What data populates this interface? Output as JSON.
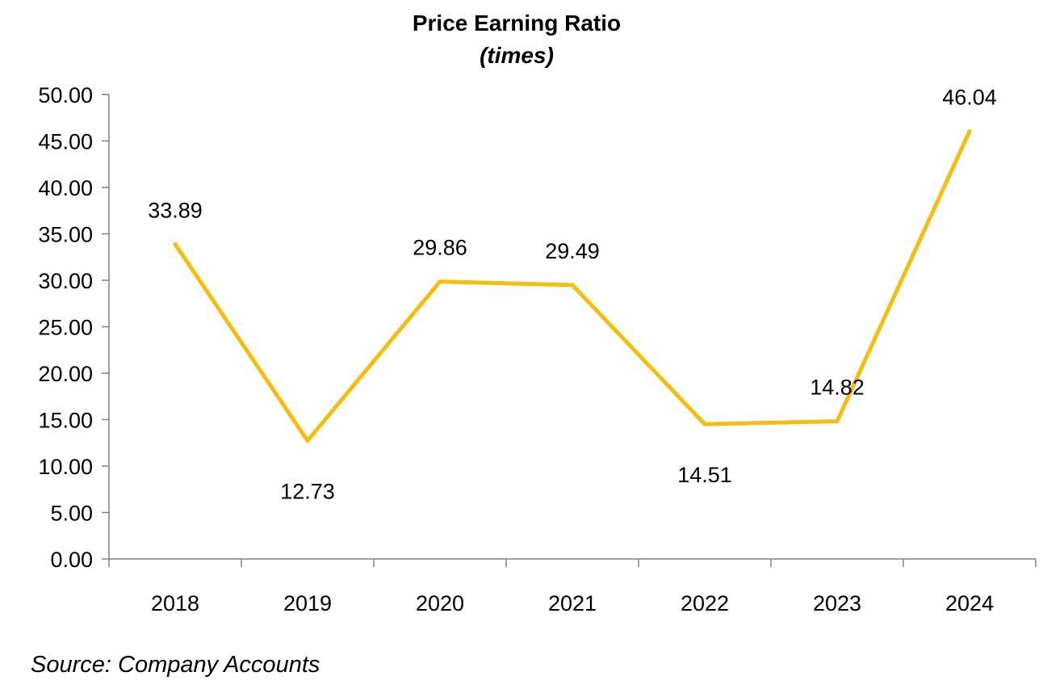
{
  "chart_data": {
    "type": "line",
    "title": "Price Earning Ratio",
    "subtitle": "(times)",
    "categories": [
      "2018",
      "2019",
      "2020",
      "2021",
      "2022",
      "2023",
      "2024"
    ],
    "series": [
      {
        "values": [
          33.89,
          12.73,
          29.86,
          29.49,
          14.51,
          14.82,
          46.04
        ],
        "color": "#F5BE0F"
      }
    ],
    "data_labels": [
      "33.89",
      "12.73",
      "29.86",
      "29.49",
      "14.51",
      "14.82",
      "46.04"
    ],
    "ylim": [
      0,
      50
    ],
    "yticks": [
      "0.00",
      "5.00",
      "10.00",
      "15.00",
      "20.00",
      "25.00",
      "30.00",
      "35.00",
      "40.00",
      "45.00",
      "50.00"
    ],
    "ytick_step": 5,
    "grid": false,
    "legend": "none"
  },
  "source": "Source: Company Accounts"
}
